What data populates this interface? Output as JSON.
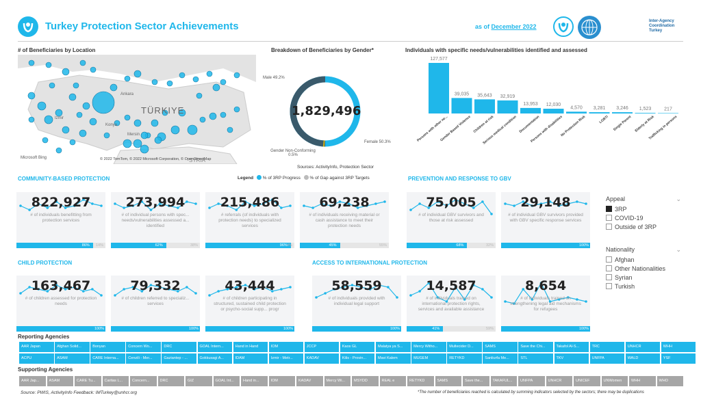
{
  "header": {
    "title": "Turkey Protection Sector Achievements",
    "as_of_prefix": "as of ",
    "as_of_date": "December 2022",
    "org_text": "Inter-Agency Coordination Turkey"
  },
  "map": {
    "title": "# of Beneficiaries by Location",
    "label_country": "TÜRKIYE",
    "label_syria": "SYRIA",
    "label_city1": "Izmir",
    "label_city2": "Ankara",
    "label_city3": "Konya",
    "label_city4": "Mersin",
    "credits": "© 2022 TomTom, © 2022 Microsoft Corporation, © OpenStreetMap",
    "bing": "Microsoft Bing",
    "land_color": "#e3e3e3",
    "sea_color": "#ffffff"
  },
  "gender": {
    "title": "Breakdown of Beneficiaries by Gender*",
    "total": "1,829,496",
    "male_label": "Male 49.2%",
    "female_label": "Female 50.3%",
    "nonconf_label": "Gender Non-Conforming 0.5%",
    "sources": "Sources: ActivityInfo, Protection Sector",
    "male_color": "#3a5a6b",
    "female_color": "#1fb7ea",
    "nonconf_color": "#f2c500"
  },
  "chart_data": {
    "type": "bar",
    "title": "Individuals with specific needs/vulnerabilities identified and assessed",
    "categories": [
      "Persons with other ne...",
      "Gender Based Violence",
      "Children at risk",
      "Serious medical condition",
      "Documentation",
      "Persons with disabilities",
      "No Protection Risk",
      "LGBTI",
      "Single Parent",
      "Elderly at Risk",
      "Trafficking in persons"
    ],
    "values": [
      127577,
      39035,
      35643,
      32919,
      13953,
      12030,
      4570,
      3281,
      3246,
      1523,
      217
    ],
    "data_labels": [
      "127,577",
      "39,035",
      "35,643",
      "32,919",
      "13,953",
      "12,030",
      "4,570",
      "3,281",
      "3,246",
      "1,523",
      "217"
    ],
    "color": "#1fb7ea"
  },
  "legend": {
    "label": "Legend",
    "progress": "% of 3RP Progress",
    "gap": "% of Gap against 3RP Targets"
  },
  "sections": {
    "community": "COMMUNITY-BASED PROTECTION",
    "gbv": "PREVENTION AND RESPONSE TO GBV",
    "child": "CHILD PROTECTION",
    "access": "ACCESS TO INTERNATIONAL PROTECTION"
  },
  "kpis": [
    {
      "value": "822,927",
      "desc": "# of individuals benefitting from protection services",
      "progress": "86%",
      "gap": "14%"
    },
    {
      "value": "273,994",
      "desc": "# of individual persons with spec... needs/vulnerabilities assessed a... identified",
      "progress": "62%",
      "gap": "38%"
    },
    {
      "value": "215,486",
      "desc": "# referrals (of individuals with protection needs) to specialized services",
      "progress": "96%",
      "gap": "4%"
    },
    {
      "value": "69,238",
      "desc": "# of individuals receiving material or cash assistance to meet their protection needs",
      "progress": "45%",
      "gap": "55%"
    },
    {
      "value": "75,005",
      "desc": "# of individual GBV survivors and those at risk assessed",
      "progress": "68%",
      "gap": "32%"
    },
    {
      "value": "29,148",
      "desc": "# of individual GBV survivors provided with GBV specific response services",
      "progress": "100%",
      "gap": ""
    },
    {
      "value": "163,467",
      "desc": "# of children assessed for protection needs",
      "progress": "100%",
      "gap": ""
    },
    {
      "value": "79,332",
      "desc": "# of children referred to specializ... services",
      "progress": "100%",
      "gap": ""
    },
    {
      "value": "43,444",
      "desc": "# of children participating in structured, sustained child protection or psycho-social supp... progr",
      "progress": "100%",
      "gap": ""
    },
    {
      "value": "58,559",
      "desc": "# of individuals provided with individual legal support",
      "progress": "100%",
      "gap": ""
    },
    {
      "value": "14,587",
      "desc": "# of individuals trained on international protection rights, services and available assistance",
      "progress": "41%",
      "gap": "59%"
    },
    {
      "value": "8,654",
      "desc": "# of individuals trained on strengthening legal aid mechanisms for refugees",
      "progress": "100%",
      "gap": ""
    }
  ],
  "appeal": {
    "title": "Appeal",
    "options": [
      "3RP",
      "COVID-19",
      "Outside of 3RP"
    ],
    "selected": "3RP"
  },
  "nationality": {
    "title": "Nationality",
    "options": [
      "Afghan",
      "Other Nationalities",
      "Syrian",
      "Turkish"
    ]
  },
  "reporting": {
    "title": "Reporting Agencies",
    "row1": [
      "AAR Japan",
      "Afghan Solid...",
      "Bonyan",
      "Concern Wo...",
      "DRC",
      "GOAL Intern...",
      "Hand in Hand",
      "IOM",
      "JCCP",
      "Kaos GL",
      "Malatya ya S...",
      "Mercy Witho...",
      "Multecider D...",
      "SAMS",
      "Save the Chi...",
      "Takafol Al-S...",
      "TRC",
      "UNHCR",
      "WHH"
    ],
    "row2": [
      "ACPU",
      "ASAM",
      "CARE Interna...",
      "Cenzili - Mer...",
      "Gaziantep - ...",
      "Gokkusagi A...",
      "IDAM",
      "Izmir - Metr...",
      "KADAV",
      "Kilis - Provin...",
      "Mavi Kalem",
      "MUGEM",
      "RETYKD",
      "Sanliurfa Me...",
      "STL",
      "TKV",
      "UNFPA",
      "WALD",
      "YSF"
    ]
  },
  "supporting": {
    "title": "Supporting Agencies",
    "items": [
      "AAR Jap...",
      "ASAM",
      "CARE Tu...",
      "Caritas L...",
      "Concern...",
      "DRC",
      "GIZ",
      "GOAL Int...",
      "Hand in...",
      "IOM",
      "KADAV",
      "Mercy Wi...",
      "MSYDD",
      "REAL e",
      "RETYKD",
      "SAMS",
      "Save the...",
      "TAKAFUL...",
      "UNFPA",
      "UNHCR",
      "UNICEF",
      "UNWomen",
      "WHH",
      "WHO"
    ]
  },
  "footer": {
    "source": "Source: PWIS, ActivityInfo  Feedback: IMTurkey@unhcr.org",
    "note": "*The number of beneficiaries reached is calculated by summing indicators selected by the sectors; there may be duplications"
  }
}
